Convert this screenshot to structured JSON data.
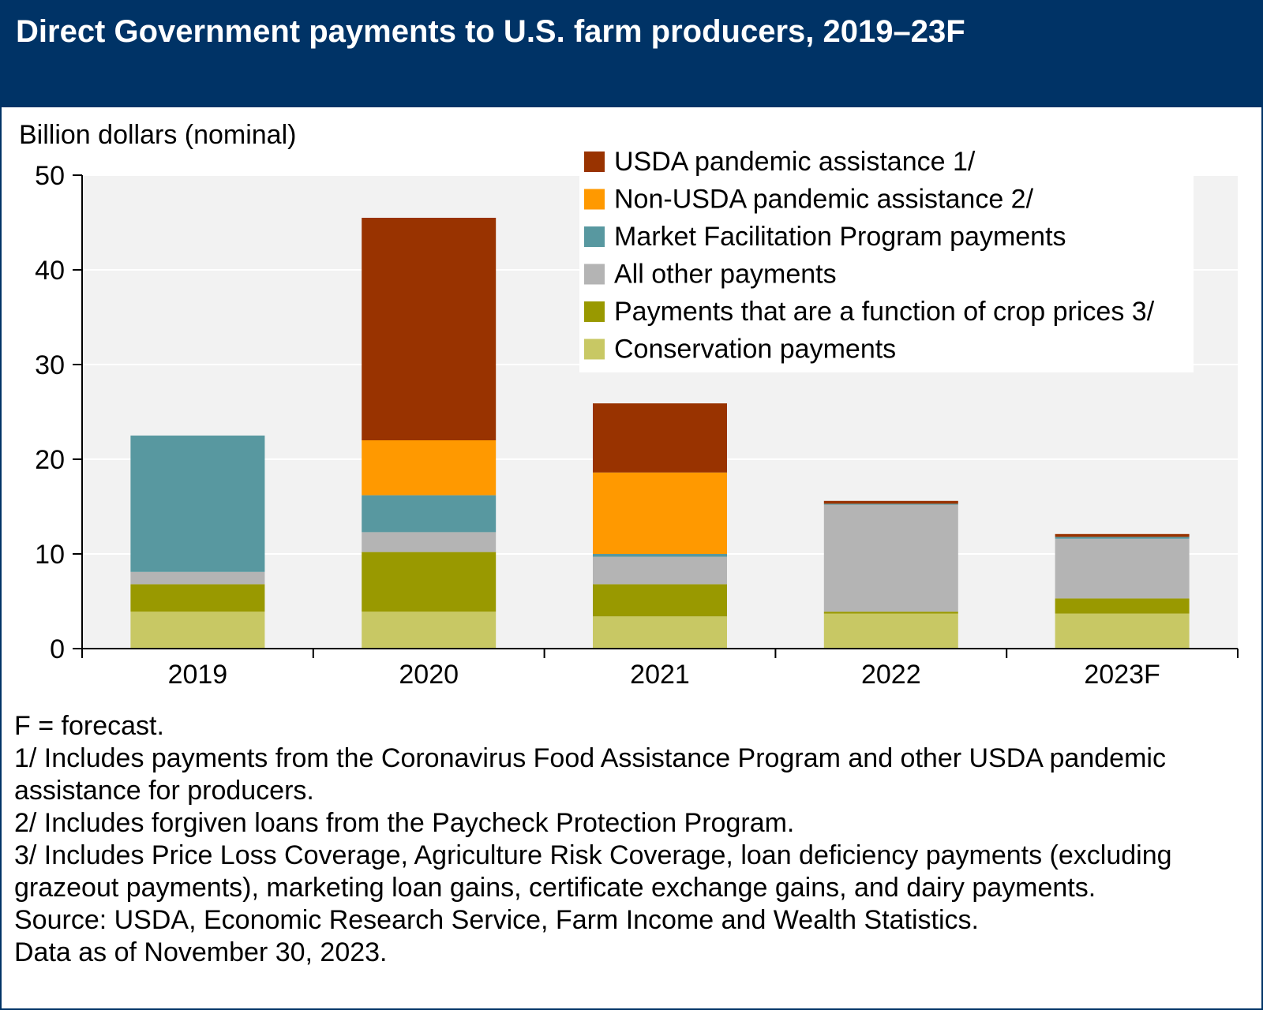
{
  "title": "Direct Government payments to U.S. farm producers, 2019–23F",
  "colors": {
    "header_bg": "#003366",
    "plot_bg": "#f2f2f2",
    "usda_pandemic": "#993300",
    "non_usda_pandemic": "#ff9900",
    "mfp": "#5898a0",
    "all_other": "#b4b4b4",
    "crop_price": "#999900",
    "conservation": "#c8c864"
  },
  "chart_data": {
    "type": "bar",
    "stacked": true,
    "ylabel": "Billion dollars (nominal)",
    "ylim": [
      0,
      50
    ],
    "yticks": [
      0,
      10,
      20,
      30,
      40,
      50
    ],
    "grid": true,
    "legend_position": "top-right",
    "categories": [
      "2019",
      "2020",
      "2021",
      "2022",
      "2023F"
    ],
    "series": [
      {
        "name": "Conservation payments",
        "color_key": "conservation",
        "values": [
          3.9,
          3.9,
          3.4,
          3.7,
          3.7
        ]
      },
      {
        "name": "Payments that are a function of crop prices 3/",
        "color_key": "crop_price",
        "values": [
          2.9,
          6.3,
          3.4,
          0.2,
          1.6
        ]
      },
      {
        "name": "All other payments",
        "color_key": "all_other",
        "values": [
          1.3,
          2.1,
          2.9,
          11.3,
          6.3
        ]
      },
      {
        "name": "Market Facilitation Program payments",
        "color_key": "mfp",
        "values": [
          14.4,
          3.9,
          0.3,
          0.1,
          0.2
        ]
      },
      {
        "name": "Non-USDA pandemic assistance 2/",
        "color_key": "non_usda_pandemic",
        "values": [
          0,
          5.8,
          8.6,
          0,
          0
        ]
      },
      {
        "name": "USDA pandemic assistance 1/",
        "color_key": "usda_pandemic",
        "values": [
          0,
          23.5,
          7.3,
          0.3,
          0.3
        ]
      }
    ],
    "legend_order": [
      "USDA pandemic assistance 1/",
      "Non-USDA pandemic assistance 2/",
      "Market Facilitation Program payments",
      "All other payments",
      "Payments that are a function of crop prices 3/",
      "Conservation payments"
    ]
  },
  "notes": [
    "F = forecast.",
    "1/ Includes payments from the Coronavirus Food Assistance Program and other USDA pandemic assistance for producers.",
    "2/ Includes forgiven loans from the Paycheck Protection Program.",
    "3/ Includes Price Loss Coverage, Agriculture Risk Coverage, loan deficiency payments (excluding grazeout payments), marketing loan gains, certificate exchange gains, and dairy payments.",
    "Source: USDA, Economic Research Service, Farm Income and Wealth Statistics.",
    "Data as of November 30, 2023."
  ]
}
